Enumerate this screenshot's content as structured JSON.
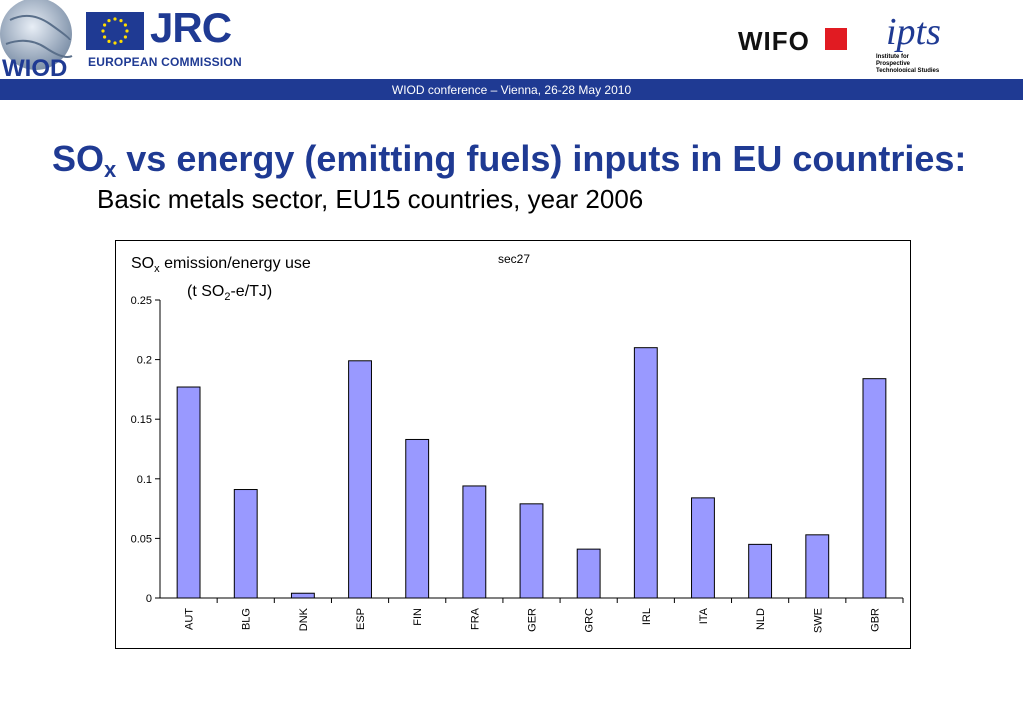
{
  "header": {
    "globe_logo_text": "WIOD",
    "jrc_logo_text": "JRC",
    "ec_text": "EUROPEAN COMMISSION",
    "wifo_logo_text": "WIFO",
    "ipts_logo_text": "ipts",
    "ipts_caption": [
      "Institute for",
      "Prospective",
      "Technological Studies"
    ],
    "banner_text": "WIOD conference – Vienna, 26-28 May 2010"
  },
  "colors": {
    "brand_blue": "#1f3a93",
    "bar_fill": "#9999ff",
    "wifo_red": "#e11b22"
  },
  "title": {
    "main_prefix": "SO",
    "main_sub": "x",
    "main_rest": " vs energy (emitting fuels) inputs in EU countries:",
    "subtitle": "Basic metals sector, EU15 countries, year 2006"
  },
  "chart_data": {
    "type": "bar",
    "title": "sec27",
    "ylabel_line1_prefix": "SO",
    "ylabel_line1_sub": "x",
    "ylabel_line1_rest": " emission/energy use",
    "ylabel_line2_prefix": "(t SO",
    "ylabel_line2_sub": "2",
    "ylabel_line2_rest": "-e/TJ)",
    "categories": [
      "AUT",
      "BLG",
      "DNK",
      "ESP",
      "FIN",
      "FRA",
      "GER",
      "GRC",
      "IRL",
      "ITA",
      "NLD",
      "SWE",
      "GBR"
    ],
    "values": [
      0.177,
      0.091,
      0.004,
      0.199,
      0.133,
      0.094,
      0.079,
      0.041,
      0.21,
      0.084,
      0.045,
      0.053,
      0.184
    ],
    "ylim": [
      0,
      0.25
    ],
    "yticks": [
      0,
      0.05,
      0.1,
      0.15,
      0.2,
      0.25
    ],
    "ytick_labels": [
      "0",
      "0.05",
      "0.1",
      "0.15",
      "0.2",
      "0.25"
    ],
    "grid": false,
    "legend": "none"
  }
}
